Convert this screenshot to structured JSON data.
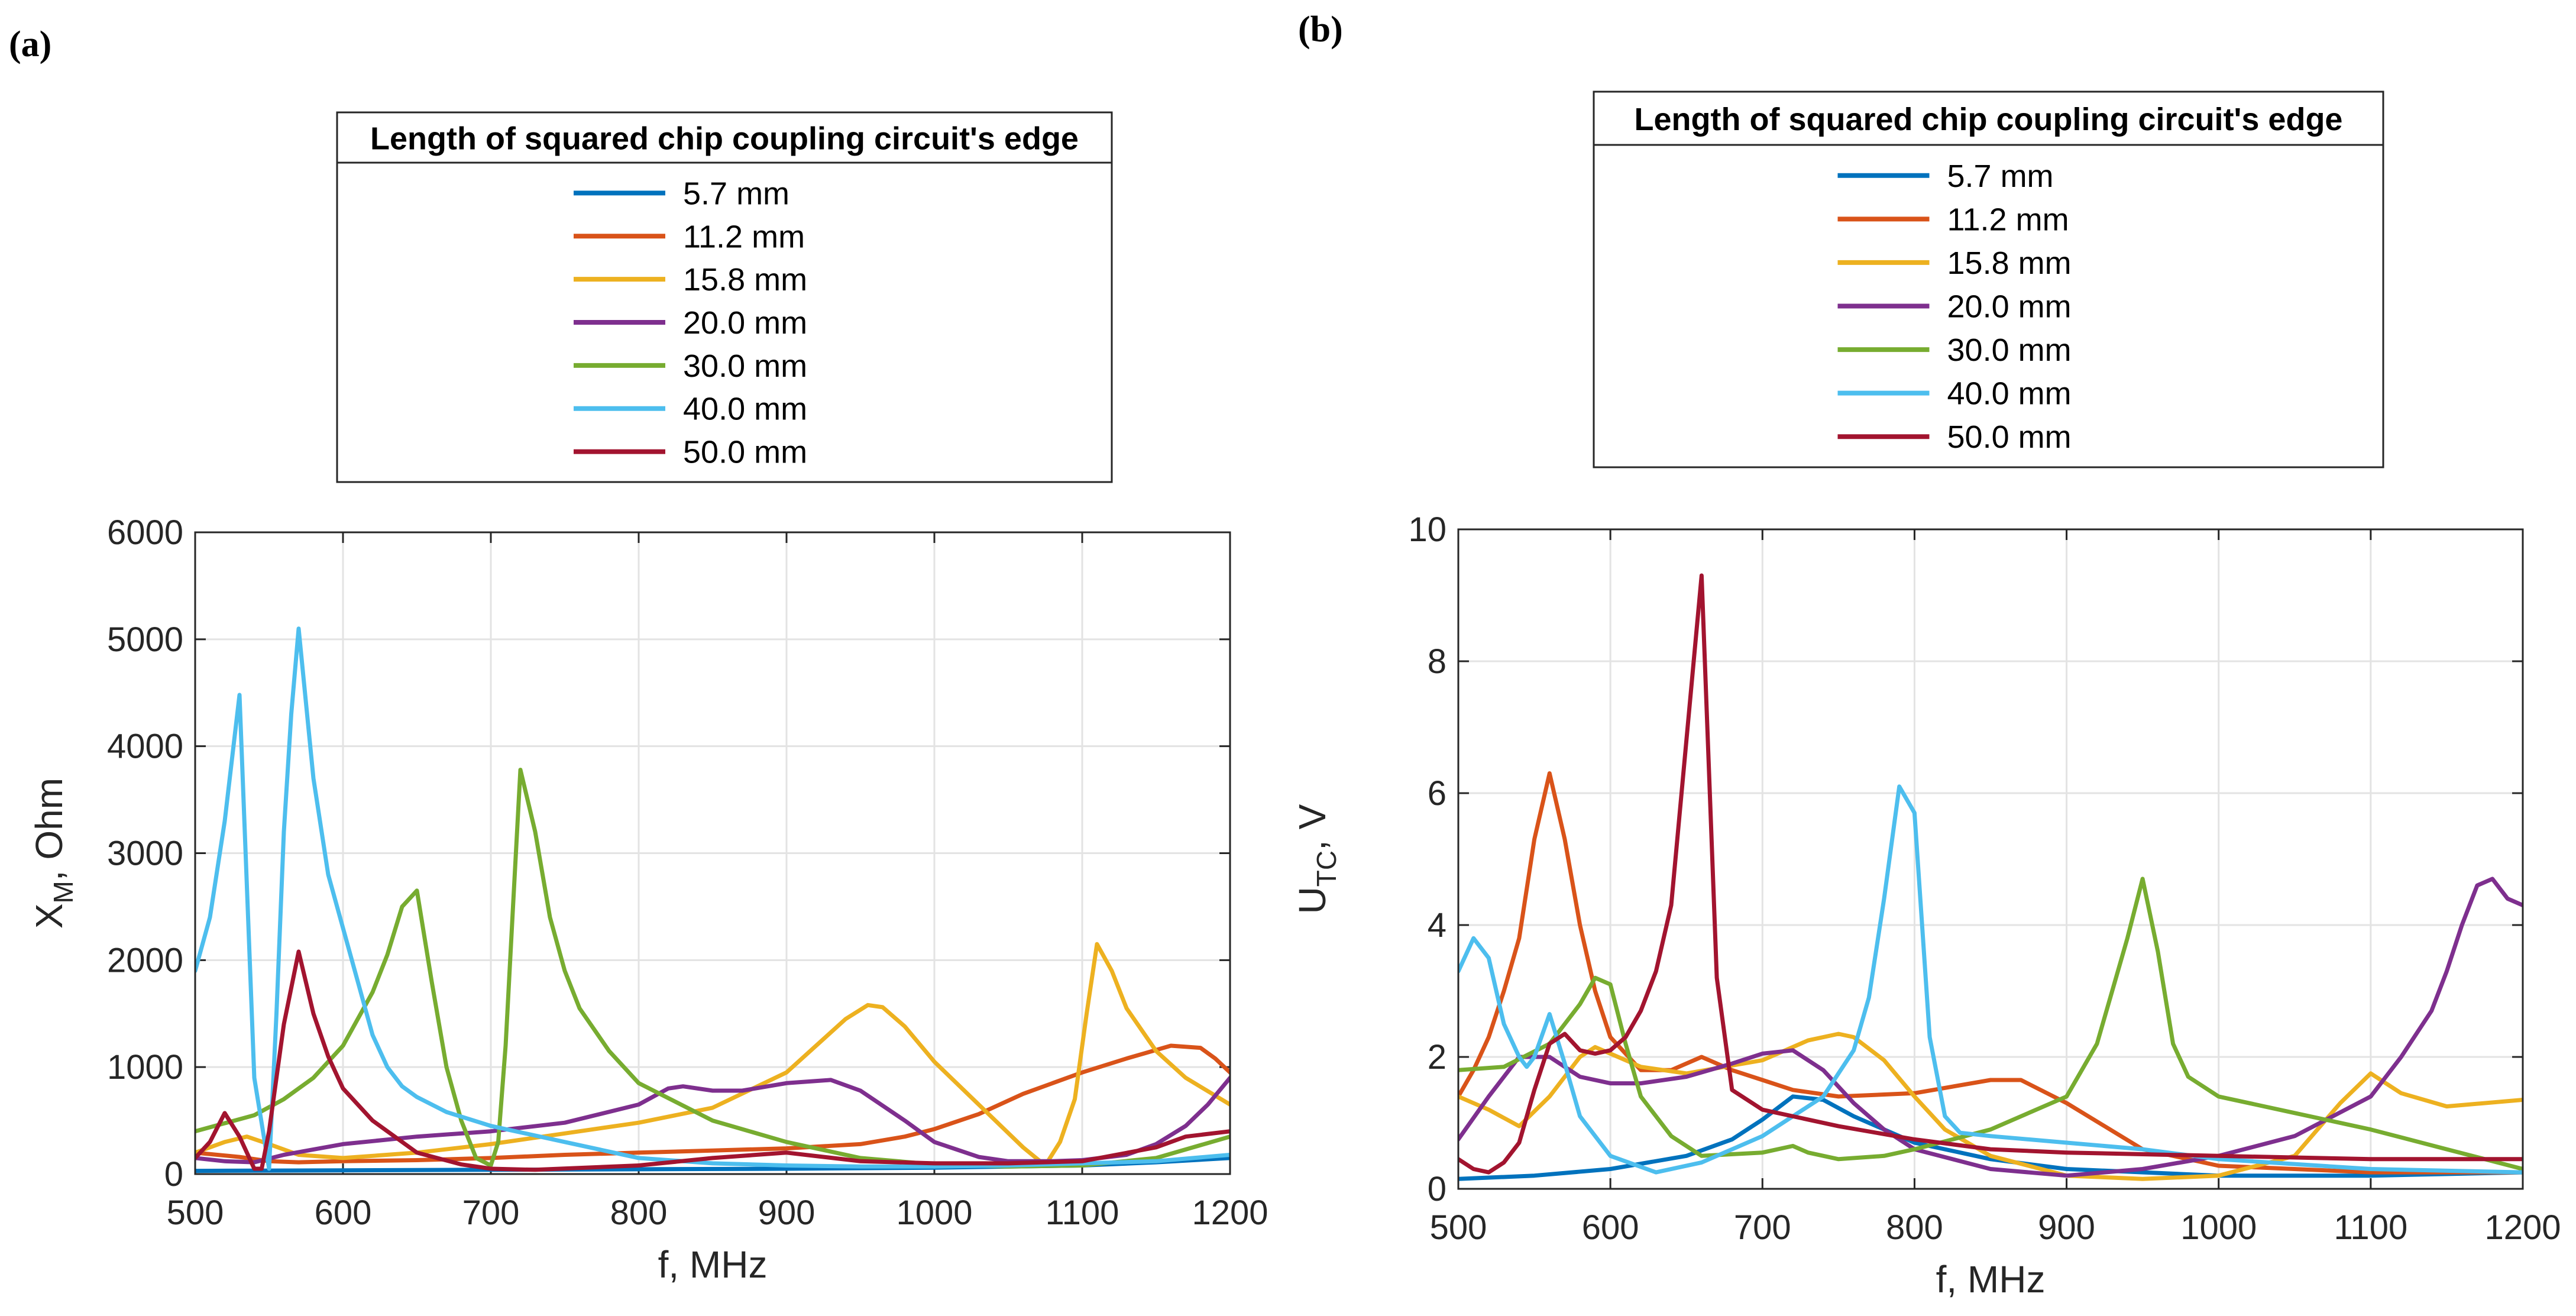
{
  "colors": [
    "#0072BD",
    "#D95319",
    "#EDB120",
    "#7E2F8E",
    "#77AC30",
    "#4DBEEE",
    "#A2142F"
  ],
  "chart_data": [
    {
      "type": "line",
      "panel_label": "(a)",
      "legend_title": "Length of squared chip coupling circuit's edge",
      "xlabel": "f, MHz",
      "ylabel_main": "X",
      "ylabel_sub": "M",
      "ylabel_rest": ", Ohm",
      "xlim": [
        500,
        1200
      ],
      "ylim": [
        0,
        6000
      ],
      "xticks": [
        "500",
        "600",
        "700",
        "800",
        "900",
        "1000",
        "1100",
        "1200"
      ],
      "yticks": [
        "0",
        "1000",
        "2000",
        "3000",
        "4000",
        "5000",
        "6000"
      ],
      "grid": true,
      "series": [
        {
          "name": "5.7 mm",
          "x": [
            500,
            600,
            700,
            800,
            900,
            1000,
            1100,
            1150,
            1200
          ],
          "y": [
            30,
            35,
            40,
            45,
            50,
            60,
            80,
            110,
            150
          ]
        },
        {
          "name": "11.2 mm",
          "x": [
            500,
            530,
            550,
            570,
            600,
            650,
            700,
            750,
            800,
            850,
            900,
            950,
            980,
            1000,
            1030,
            1060,
            1100,
            1130,
            1160,
            1180,
            1190,
            1200
          ],
          "y": [
            200,
            160,
            120,
            110,
            120,
            130,
            150,
            180,
            200,
            220,
            240,
            280,
            350,
            420,
            560,
            750,
            950,
            1080,
            1200,
            1180,
            1080,
            950
          ]
        },
        {
          "name": "15.8 mm",
          "x": [
            500,
            520,
            535,
            550,
            570,
            600,
            650,
            700,
            750,
            800,
            850,
            900,
            920,
            940,
            955,
            965,
            980,
            1000,
            1030,
            1060,
            1075,
            1085,
            1095,
            1103,
            1110,
            1120,
            1130,
            1150,
            1170,
            1200
          ],
          "y": [
            200,
            300,
            350,
            280,
            180,
            150,
            200,
            280,
            380,
            480,
            620,
            950,
            1200,
            1450,
            1580,
            1560,
            1380,
            1050,
            650,
            250,
            80,
            300,
            700,
            1500,
            2150,
            1900,
            1550,
            1150,
            900,
            650
          ]
        },
        {
          "name": "20.0 mm",
          "x": [
            500,
            520,
            540,
            560,
            600,
            650,
            700,
            750,
            800,
            820,
            830,
            850,
            870,
            900,
            930,
            950,
            980,
            1000,
            1030,
            1050,
            1080,
            1100,
            1130,
            1150,
            1170,
            1185,
            1200
          ],
          "y": [
            150,
            120,
            110,
            180,
            280,
            350,
            400,
            480,
            650,
            800,
            820,
            780,
            780,
            850,
            880,
            780,
            500,
            300,
            160,
            120,
            120,
            130,
            180,
            280,
            450,
            650,
            900
          ]
        },
        {
          "name": "30.0 mm",
          "x": [
            500,
            540,
            560,
            580,
            600,
            620,
            630,
            640,
            650,
            660,
            670,
            680,
            690,
            700,
            705,
            710,
            715,
            720,
            730,
            740,
            750,
            760,
            780,
            800,
            850,
            900,
            950,
            1000,
            1050,
            1100,
            1150,
            1200
          ],
          "y": [
            400,
            550,
            700,
            900,
            1200,
            1700,
            2050,
            2500,
            2650,
            1800,
            1000,
            500,
            150,
            80,
            300,
            1200,
            2500,
            3780,
            3200,
            2400,
            1900,
            1550,
            1150,
            850,
            500,
            300,
            150,
            90,
            70,
            80,
            150,
            350
          ]
        },
        {
          "name": "40.0 mm",
          "x": [
            500,
            510,
            520,
            530,
            540,
            550,
            555,
            560,
            565,
            570,
            580,
            590,
            600,
            610,
            620,
            630,
            640,
            650,
            670,
            700,
            750,
            800,
            850,
            900,
            950,
            1000,
            1050,
            1100,
            1150,
            1200
          ],
          "y": [
            1900,
            2400,
            3300,
            4480,
            900,
            50,
            1500,
            3200,
            4300,
            5100,
            3700,
            2800,
            2300,
            1800,
            1300,
            1000,
            820,
            720,
            580,
            450,
            300,
            150,
            100,
            80,
            70,
            70,
            80,
            100,
            120,
            180
          ]
        },
        {
          "name": "50.0 mm",
          "x": [
            500,
            510,
            520,
            530,
            540,
            545,
            550,
            560,
            570,
            580,
            590,
            600,
            620,
            650,
            680,
            700,
            730,
            800,
            850,
            900,
            950,
            1000,
            1050,
            1100,
            1150,
            1170,
            1200
          ],
          "y": [
            150,
            300,
            570,
            350,
            50,
            50,
            400,
            1400,
            2080,
            1500,
            1100,
            800,
            500,
            200,
            90,
            50,
            40,
            80,
            150,
            200,
            120,
            100,
            100,
            120,
            250,
            350,
            400
          ]
        }
      ]
    },
    {
      "type": "line",
      "panel_label": "(b)",
      "legend_title": "Length of squared chip coupling circuit's edge",
      "xlabel": "f, MHz",
      "ylabel_main": "U",
      "ylabel_sub": "TC",
      "ylabel_rest": ", V",
      "xlim": [
        500,
        1200
      ],
      "ylim": [
        0,
        10
      ],
      "xticks": [
        "500",
        "600",
        "700",
        "800",
        "900",
        "1000",
        "1100",
        "1200"
      ],
      "yticks": [
        "0",
        "2",
        "4",
        "6",
        "8",
        "10"
      ],
      "grid": true,
      "series": [
        {
          "name": "5.7 mm",
          "x": [
            500,
            550,
            600,
            650,
            680,
            700,
            720,
            740,
            760,
            800,
            850,
            900,
            1000,
            1100,
            1200
          ],
          "y": [
            0.15,
            0.2,
            0.3,
            0.5,
            0.75,
            1.05,
            1.4,
            1.35,
            1.1,
            0.7,
            0.45,
            0.3,
            0.2,
            0.2,
            0.25
          ]
        },
        {
          "name": "11.2 mm",
          "x": [
            500,
            510,
            520,
            530,
            540,
            550,
            560,
            570,
            580,
            590,
            600,
            620,
            640,
            660,
            680,
            700,
            720,
            750,
            800,
            850,
            870,
            900,
            950,
            1000,
            1100,
            1200
          ],
          "y": [
            1.4,
            1.8,
            2.3,
            3.0,
            3.8,
            5.3,
            6.3,
            5.3,
            4.0,
            3.0,
            2.3,
            1.8,
            1.8,
            2.0,
            1.8,
            1.65,
            1.5,
            1.4,
            1.45,
            1.65,
            1.65,
            1.3,
            0.6,
            0.35,
            0.25,
            0.25
          ]
        },
        {
          "name": "15.8 mm",
          "x": [
            500,
            520,
            540,
            560,
            580,
            590,
            600,
            620,
            650,
            700,
            730,
            750,
            760,
            780,
            800,
            820,
            850,
            900,
            950,
            1000,
            1050,
            1080,
            1100,
            1120,
            1150,
            1200
          ],
          "y": [
            1.4,
            1.2,
            0.95,
            1.4,
            2.0,
            2.15,
            2.05,
            1.85,
            1.75,
            1.95,
            2.25,
            2.35,
            2.3,
            1.95,
            1.4,
            0.9,
            0.5,
            0.2,
            0.15,
            0.2,
            0.5,
            1.3,
            1.75,
            1.45,
            1.25,
            1.35
          ]
        },
        {
          "name": "20.0 mm",
          "x": [
            500,
            520,
            540,
            560,
            580,
            600,
            620,
            650,
            680,
            700,
            720,
            740,
            760,
            780,
            800,
            850,
            900,
            950,
            1000,
            1050,
            1100,
            1120,
            1140,
            1150,
            1160,
            1170,
            1180,
            1190,
            1200
          ],
          "y": [
            0.75,
            1.4,
            2.0,
            2.0,
            1.7,
            1.6,
            1.6,
            1.7,
            1.9,
            2.05,
            2.1,
            1.8,
            1.3,
            0.9,
            0.6,
            0.3,
            0.2,
            0.3,
            0.5,
            0.8,
            1.4,
            2.0,
            2.7,
            3.3,
            4.0,
            4.6,
            4.7,
            4.4,
            4.3
          ]
        },
        {
          "name": "30.0 mm",
          "x": [
            500,
            530,
            560,
            580,
            590,
            600,
            610,
            620,
            640,
            660,
            700,
            720,
            730,
            750,
            780,
            800,
            850,
            900,
            920,
            940,
            950,
            960,
            970,
            980,
            1000,
            1050,
            1100,
            1150,
            1200
          ],
          "y": [
            1.8,
            1.85,
            2.2,
            2.8,
            3.2,
            3.1,
            2.2,
            1.4,
            0.8,
            0.5,
            0.55,
            0.65,
            0.55,
            0.45,
            0.5,
            0.6,
            0.9,
            1.4,
            2.2,
            3.8,
            4.7,
            3.6,
            2.2,
            1.7,
            1.4,
            1.15,
            0.9,
            0.6,
            0.3
          ]
        },
        {
          "name": "40.0 mm",
          "x": [
            500,
            510,
            520,
            530,
            540,
            545,
            550,
            560,
            570,
            580,
            600,
            630,
            660,
            700,
            740,
            760,
            770,
            780,
            790,
            800,
            810,
            820,
            830,
            850,
            900,
            950,
            1000,
            1100,
            1200
          ],
          "y": [
            3.3,
            3.8,
            3.5,
            2.5,
            2.0,
            1.85,
            2.0,
            2.65,
            1.9,
            1.1,
            0.5,
            0.25,
            0.4,
            0.8,
            1.4,
            2.1,
            2.9,
            4.4,
            6.1,
            5.7,
            2.3,
            1.1,
            0.85,
            0.8,
            0.7,
            0.6,
            0.45,
            0.3,
            0.25
          ]
        },
        {
          "name": "50.0 mm",
          "x": [
            500,
            510,
            520,
            530,
            540,
            550,
            560,
            570,
            580,
            590,
            600,
            610,
            620,
            630,
            640,
            650,
            660,
            670,
            680,
            700,
            750,
            800,
            850,
            900,
            1000,
            1100,
            1200
          ],
          "y": [
            0.45,
            0.3,
            0.25,
            0.4,
            0.7,
            1.5,
            2.2,
            2.35,
            2.1,
            2.05,
            2.1,
            2.3,
            2.7,
            3.3,
            4.3,
            6.8,
            9.3,
            3.2,
            1.5,
            1.2,
            0.95,
            0.75,
            0.6,
            0.55,
            0.5,
            0.45,
            0.45
          ]
        }
      ]
    }
  ]
}
